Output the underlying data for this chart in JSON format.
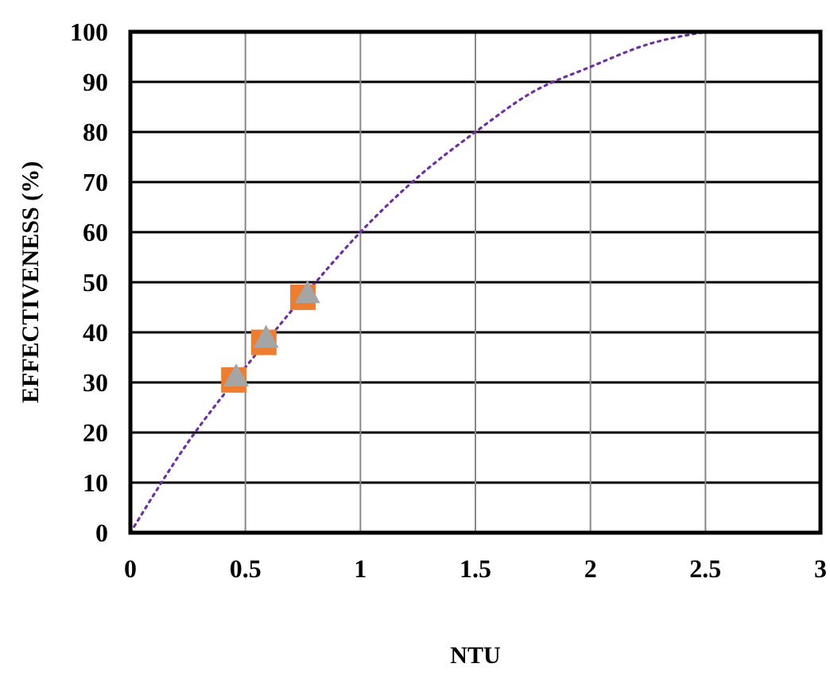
{
  "chart_data": {
    "type": "scatter",
    "xlabel": "NTU",
    "ylabel": "EFFECTIVENESS (%)",
    "xlim": [
      0,
      3
    ],
    "ylim": [
      0,
      100
    ],
    "xticks": [
      0,
      0.5,
      1,
      1.5,
      2,
      2.5,
      3
    ],
    "yticks": [
      0,
      10,
      20,
      30,
      40,
      50,
      60,
      70,
      80,
      90,
      100
    ],
    "grid": true,
    "series": [
      {
        "type": "line",
        "color": "#7030a0",
        "line_style": "dotted",
        "marker": "none",
        "x": [
          0,
          0.25,
          0.5,
          0.75,
          1,
          1.25,
          1.5,
          1.75,
          2,
          2.25,
          2.5
        ],
        "values": [
          0,
          18,
          33,
          47,
          60,
          71,
          80,
          88,
          93,
          97.5,
          100
        ]
      },
      {
        "color": "#ed7d31",
        "marker": "square",
        "x": [
          0.45,
          0.58,
          0.75
        ],
        "values": [
          30.5,
          38,
          47
        ]
      },
      {
        "color": "#a5a5a5",
        "marker": "triangle",
        "x": [
          0.46,
          0.59,
          0.77
        ],
        "values": [
          31,
          38.7,
          47.6
        ]
      }
    ]
  }
}
